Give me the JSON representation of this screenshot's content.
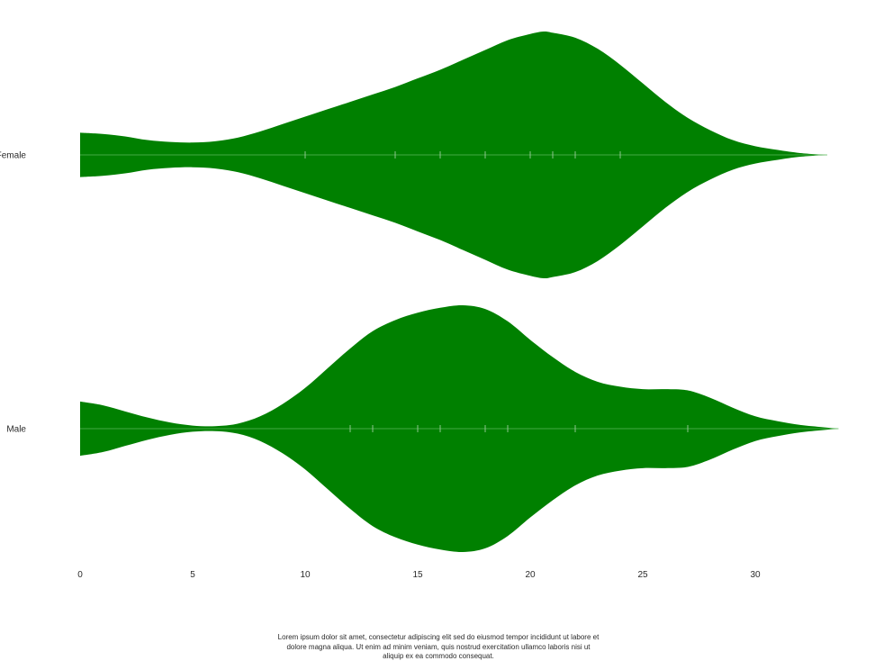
{
  "chart_data": {
    "type": "violin",
    "orientation": "horizontal",
    "fill_color": "#008000",
    "median_line_color": "#5cb85c",
    "tick_color": "#9ccc9c",
    "xlim": [
      0,
      33.8
    ],
    "x_ticks": [
      0,
      5,
      10,
      15,
      20,
      25,
      30
    ],
    "grid": false,
    "legend": "none",
    "series": [
      {
        "name": "Female",
        "data_points": [
          10,
          14,
          16,
          18,
          20,
          21,
          22,
          24
        ],
        "range": [
          0,
          33.2
        ],
        "density_profile": [
          [
            0,
            0.18
          ],
          [
            1,
            0.17
          ],
          [
            2,
            0.15
          ],
          [
            3,
            0.12
          ],
          [
            4,
            0.105
          ],
          [
            5,
            0.1
          ],
          [
            6,
            0.11
          ],
          [
            7,
            0.14
          ],
          [
            8,
            0.19
          ],
          [
            9,
            0.25
          ],
          [
            10,
            0.31
          ],
          [
            11,
            0.37
          ],
          [
            12,
            0.43
          ],
          [
            13,
            0.49
          ],
          [
            14,
            0.55
          ],
          [
            15,
            0.62
          ],
          [
            16,
            0.69
          ],
          [
            17,
            0.77
          ],
          [
            18,
            0.85
          ],
          [
            19,
            0.93
          ],
          [
            20,
            0.98
          ],
          [
            20.6,
            1.0
          ],
          [
            21,
            0.99
          ],
          [
            22,
            0.95
          ],
          [
            23,
            0.86
          ],
          [
            24,
            0.73
          ],
          [
            25,
            0.58
          ],
          [
            26,
            0.43
          ],
          [
            27,
            0.3
          ],
          [
            28,
            0.2
          ],
          [
            29,
            0.12
          ],
          [
            30,
            0.07
          ],
          [
            31,
            0.04
          ],
          [
            32,
            0.015
          ],
          [
            33.2,
            0.0
          ]
        ]
      },
      {
        "name": "Male",
        "data_points": [
          12,
          13,
          15,
          16,
          18,
          19,
          22,
          27
        ],
        "range": [
          0,
          33.7
        ],
        "density_profile": [
          [
            0,
            0.22
          ],
          [
            1,
            0.19
          ],
          [
            2,
            0.14
          ],
          [
            3,
            0.09
          ],
          [
            4,
            0.05
          ],
          [
            5,
            0.025
          ],
          [
            6,
            0.02
          ],
          [
            7,
            0.04
          ],
          [
            8,
            0.1
          ],
          [
            9,
            0.2
          ],
          [
            10,
            0.33
          ],
          [
            11,
            0.49
          ],
          [
            12,
            0.65
          ],
          [
            13,
            0.79
          ],
          [
            14,
            0.88
          ],
          [
            15,
            0.94
          ],
          [
            16,
            0.98
          ],
          [
            17,
            1.0
          ],
          [
            18,
            0.97
          ],
          [
            19,
            0.87
          ],
          [
            20,
            0.72
          ],
          [
            21,
            0.58
          ],
          [
            22,
            0.46
          ],
          [
            23,
            0.38
          ],
          [
            24,
            0.34
          ],
          [
            25,
            0.32
          ],
          [
            26,
            0.32
          ],
          [
            27,
            0.31
          ],
          [
            28,
            0.25
          ],
          [
            29,
            0.17
          ],
          [
            30,
            0.1
          ],
          [
            31,
            0.06
          ],
          [
            32,
            0.03
          ],
          [
            33,
            0.012
          ],
          [
            33.7,
            0.0
          ]
        ]
      }
    ]
  },
  "caption": "Lorem ipsum dolor sit amet, consectetur adipiscing elit sed do eiusmod tempor incididunt ut labore et dolore magna aliqua. Ut enim ad minim veniam, quis nostrud exercitation ullamco laboris nisi ut aliquip ex ea commodo consequat."
}
